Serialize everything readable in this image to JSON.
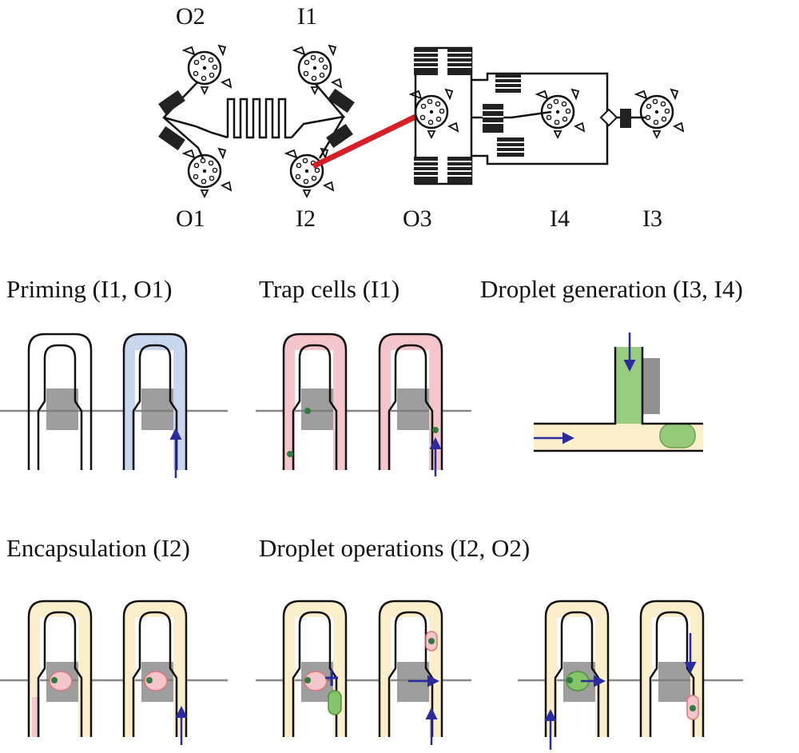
{
  "ports": {
    "o2": "O2",
    "i1": "I1",
    "o1": "O1",
    "i2": "I2",
    "o3": "O3",
    "i4": "I4",
    "i3": "I3"
  },
  "panels": {
    "priming": "Priming (I1, O1)",
    "trap_cells": "Trap cells (I1)",
    "droplet_generation": "Droplet generation (I3, I4)",
    "encapsulation": "Encapsulation (I2)",
    "droplet_operations": "Droplet operations (I2, O2)"
  },
  "colors": {
    "channel": "#111111",
    "valve": "#7d7d7d",
    "blue_fluid": "#c9d7ee",
    "pink_fluid": "#f4c6cb",
    "yellow_fluid": "#fbeecb",
    "green_droplet": "#86c46a",
    "cell": "#2e7d3e",
    "arrow": "#2b2ba0",
    "laser": "#d61f26"
  }
}
